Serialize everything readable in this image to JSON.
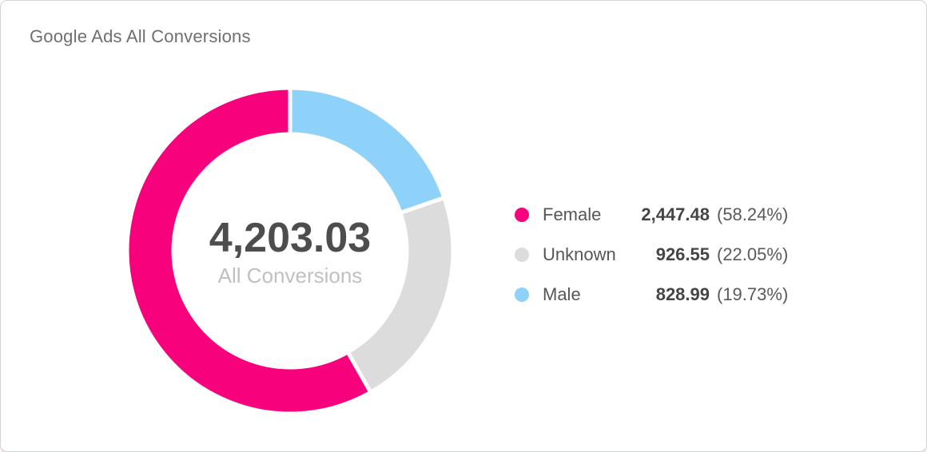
{
  "chart_data": {
    "type": "pie",
    "donut": true,
    "title": "Google Ads All Conversions",
    "center": {
      "value_label": "4,203.03",
      "label": "All Conversions",
      "total": 4203.03
    },
    "legend_position": "right",
    "start_angle_deg": 0,
    "draw_direction": "clockwise-from-top, segments in reverse legend order",
    "inner_outer_radius_ratio": 0.71,
    "series": [
      {
        "name": "Female",
        "value": 2447.48,
        "percent": 58.24,
        "color": "#f8017d",
        "value_label": "2,447.48",
        "percent_label": "(58.24%)"
      },
      {
        "name": "Unknown",
        "value": 926.55,
        "percent": 22.05,
        "color": "#dcdcdc",
        "value_label": "926.55",
        "percent_label": "(22.05%)"
      },
      {
        "name": "Male",
        "value": 828.99,
        "percent": 19.73,
        "color": "#8ed1f9",
        "value_label": "828.99",
        "percent_label": "(19.73%)"
      }
    ]
  }
}
